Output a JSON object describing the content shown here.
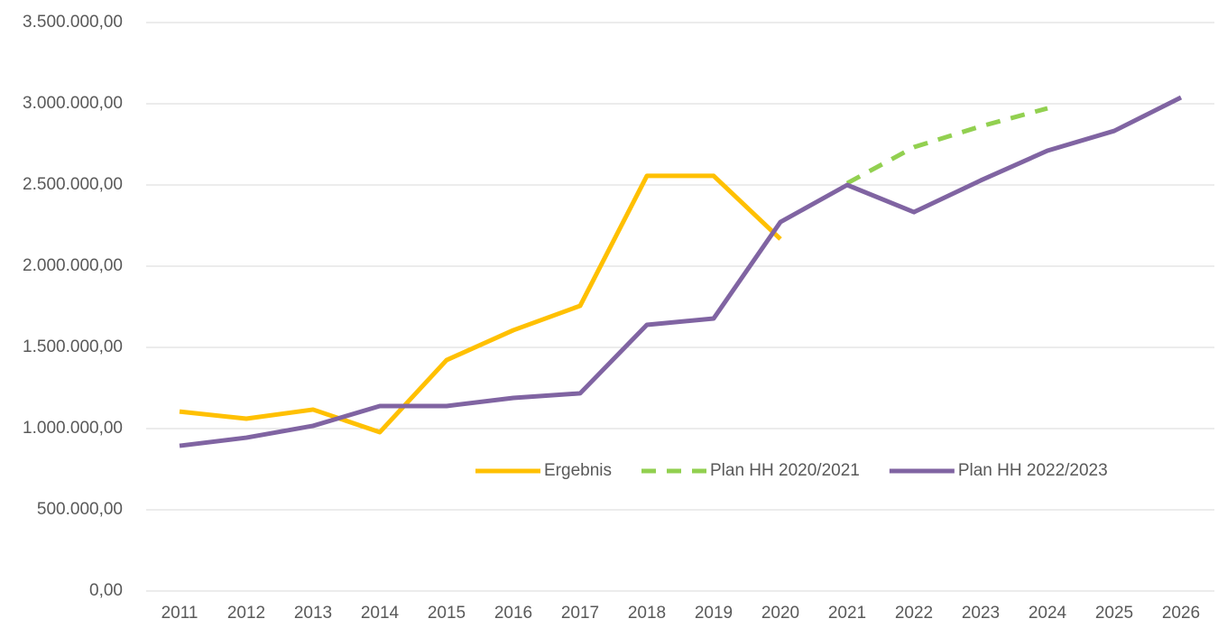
{
  "chart_data": {
    "type": "line",
    "categories": [
      "2011",
      "2012",
      "2013",
      "2014",
      "2015",
      "2016",
      "2017",
      "2018",
      "2019",
      "2020",
      "2021",
      "2022",
      "2023",
      "2024",
      "2025",
      "2026"
    ],
    "series": [
      {
        "name": "Ergebnis",
        "color": "#ffc000",
        "dashed": false,
        "values": [
          1105000,
          1061000,
          1117000,
          978000,
          1422000,
          1606000,
          1756000,
          2556000,
          2556000,
          2167000,
          null,
          null,
          null,
          null,
          null,
          null
        ]
      },
      {
        "name": "Plan HH 2020/2021",
        "color": "#92d050",
        "dashed": true,
        "values": [
          null,
          null,
          null,
          null,
          null,
          null,
          null,
          null,
          null,
          null,
          2511000,
          2733000,
          2861000,
          2972000,
          null,
          null
        ]
      },
      {
        "name": "Plan HH 2022/2023",
        "color": "#8064a2",
        "dashed": false,
        "values": [
          894000,
          944000,
          1017000,
          1139000,
          1139000,
          1189000,
          1217000,
          1639000,
          1678000,
          2272000,
          2500000,
          2333000,
          2528000,
          2711000,
          2833000,
          3039000
        ]
      }
    ],
    "ylim": [
      0,
      3500000
    ],
    "yticks": [
      {
        "value": 0,
        "label": "0,00"
      },
      {
        "value": 500000,
        "label": "500.000,00"
      },
      {
        "value": 1000000,
        "label": "1.000.000,00"
      },
      {
        "value": 1500000,
        "label": "1.500.000,00"
      },
      {
        "value": 2000000,
        "label": "2.000.000,00"
      },
      {
        "value": 2500000,
        "label": "2.500.000,00"
      },
      {
        "value": 3000000,
        "label": "3.000.000,00"
      },
      {
        "value": 3500000,
        "label": "3.500.000,00"
      }
    ],
    "grid": true,
    "legend": "bottom-right"
  }
}
